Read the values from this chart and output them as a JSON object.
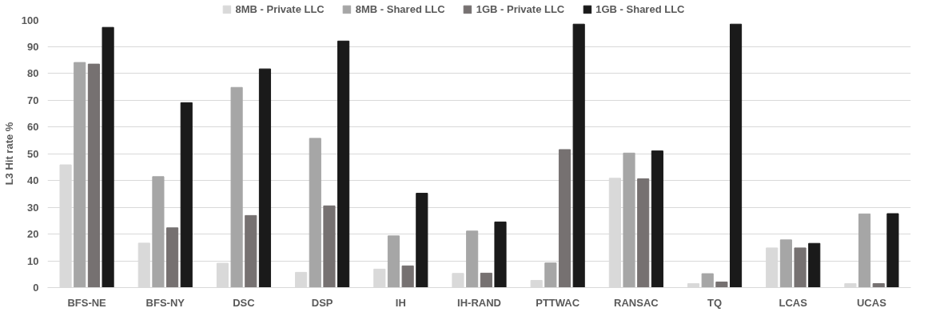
{
  "chart_data": {
    "type": "bar",
    "ylabel": "L3 Hit rate %",
    "categories": [
      "BFS-NE",
      "BFS-NY",
      "DSC",
      "DSP",
      "IH",
      "IH-RAND",
      "PTTWAC",
      "RANSAC",
      "TQ",
      "LCAS",
      "UCAS"
    ],
    "series": [
      {
        "name": "8MB - Private LLC",
        "color": "#d9d9d9",
        "values": [
          45.8,
          16.6,
          9.1,
          5.7,
          6.9,
          5.3,
          2.7,
          40.8,
          1.5,
          14.8,
          1.5
        ]
      },
      {
        "name": "8MB - Shared LLC",
        "color": "#a6a6a6",
        "values": [
          84,
          41.4,
          74.7,
          55.7,
          19.3,
          21.1,
          9.2,
          50.2,
          5.2,
          17.8,
          27.5
        ]
      },
      {
        "name": "1GB - Private LLC",
        "color": "#767171",
        "values": [
          83.4,
          22.3,
          26.9,
          30.5,
          8.1,
          5.4,
          51.5,
          40.6,
          2.1,
          14.8,
          1.5
        ]
      },
      {
        "name": "1GB - Shared LLC",
        "color": "#1a1a1a",
        "values": [
          97.1,
          69,
          81.6,
          92,
          35.2,
          24.5,
          98.3,
          51,
          98.3,
          16.5,
          27.6
        ]
      }
    ],
    "ylim": [
      0,
      100
    ],
    "yticks": [
      0,
      10,
      20,
      30,
      40,
      50,
      60,
      70,
      80,
      90,
      100
    ],
    "grid": "y",
    "legend": "top"
  }
}
